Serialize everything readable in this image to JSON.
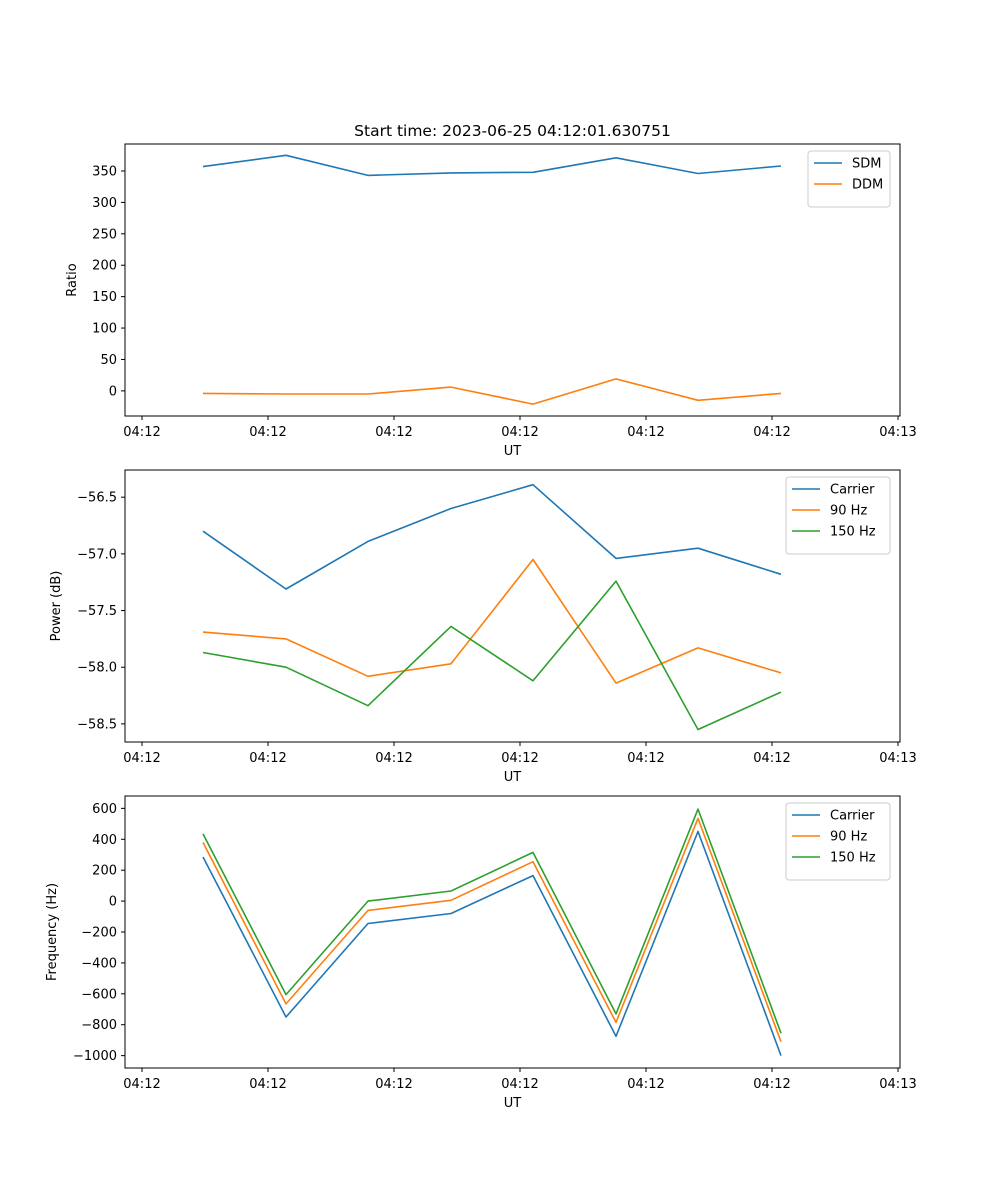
{
  "title": "Start time: 2023-06-25 04:12:01.630751",
  "chart_data": [
    {
      "type": "line",
      "title": "Start time: 2023-06-25 04:12:01.630751",
      "xlabel": "UT",
      "ylabel": "Ratio",
      "x_tick_labels": [
        "04:12",
        "04:12",
        "04:12",
        "04:12",
        "04:12",
        "04:12",
        "04:13"
      ],
      "y_ticks": [
        0,
        50,
        100,
        150,
        200,
        250,
        300,
        350
      ],
      "ylim": [
        -40,
        393
      ],
      "legend_position": "top-right",
      "grid": false,
      "series": [
        {
          "name": "SDM",
          "color": "#1f77b4",
          "values": [
            357,
            375,
            343,
            347,
            348,
            371,
            346,
            358
          ]
        },
        {
          "name": "DDM",
          "color": "#ff7f0e",
          "values": [
            -4,
            -5,
            -5,
            6,
            -21,
            19,
            -15,
            -4
          ]
        }
      ]
    },
    {
      "type": "line",
      "title": "",
      "xlabel": "UT",
      "ylabel": "Power (dB)",
      "x_tick_labels": [
        "04:12",
        "04:12",
        "04:12",
        "04:12",
        "04:12",
        "04:12",
        "04:13"
      ],
      "y_ticks": [
        -56.5,
        -57.0,
        -57.5,
        -58.0,
        -58.5
      ],
      "y_tick_labels": [
        "−56.5",
        "−57.0",
        "−57.5",
        "−58.0",
        "−58.5"
      ],
      "ylim": [
        -58.66,
        -56.26
      ],
      "legend_position": "top-right",
      "grid": false,
      "series": [
        {
          "name": "Carrier",
          "color": "#1f77b4",
          "values": [
            -56.8,
            -57.31,
            -56.89,
            -56.6,
            -56.39,
            -57.04,
            -56.95,
            -57.18
          ]
        },
        {
          "name": "90 Hz",
          "color": "#ff7f0e",
          "values": [
            -57.69,
            -57.75,
            -58.08,
            -57.97,
            -57.05,
            -58.14,
            -57.83,
            -58.05
          ]
        },
        {
          "name": "150 Hz",
          "color": "#2ca02c",
          "values": [
            -57.87,
            -58.0,
            -58.34,
            -57.64,
            -58.12,
            -57.24,
            -58.55,
            -58.22
          ]
        }
      ]
    },
    {
      "type": "line",
      "title": "",
      "xlabel": "UT",
      "ylabel": "Frequency (Hz)",
      "x_tick_labels": [
        "04:12",
        "04:12",
        "04:12",
        "04:12",
        "04:12",
        "04:12",
        "04:13"
      ],
      "y_ticks": [
        600,
        400,
        200,
        0,
        -200,
        -400,
        -600,
        -800,
        -1000
      ],
      "y_tick_labels": [
        "600",
        "400",
        "200",
        "0",
        "−200",
        "−400",
        "−600",
        "−800",
        "−1000"
      ],
      "ylim": [
        -1080,
        680
      ],
      "legend_position": "top-right",
      "grid": false,
      "series": [
        {
          "name": "Carrier",
          "color": "#1f77b4",
          "values": [
            285,
            -750,
            -145,
            -80,
            165,
            -875,
            450,
            -1000
          ]
        },
        {
          "name": "90 Hz",
          "color": "#ff7f0e",
          "values": [
            380,
            -665,
            -60,
            5,
            255,
            -785,
            535,
            -910
          ]
        },
        {
          "name": "150 Hz",
          "color": "#2ca02c",
          "values": [
            435,
            -605,
            0,
            65,
            315,
            -730,
            595,
            -855
          ]
        }
      ]
    }
  ]
}
